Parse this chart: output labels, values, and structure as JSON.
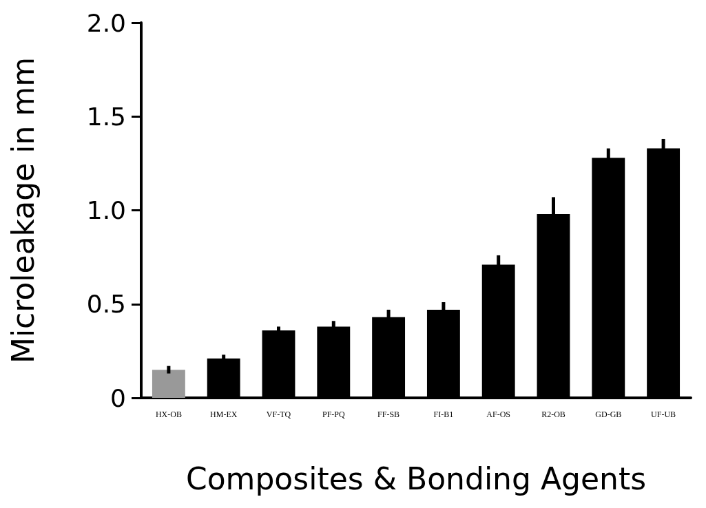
{
  "chart_data": {
    "type": "bar",
    "xlabel": "Composites & Bonding Agents",
    "ylabel": "Microleakage in mm",
    "categories": [
      "HX-OB",
      "HM-EX",
      "VF-TQ",
      "PF-PQ",
      "FF-SB",
      "FI-B1",
      "AF-OS",
      "R2-OB",
      "GD-GB",
      "UF-UB"
    ],
    "values": [
      0.15,
      0.21,
      0.36,
      0.38,
      0.43,
      0.47,
      0.71,
      0.98,
      1.28,
      1.33
    ],
    "errors": [
      0.02,
      0.02,
      0.02,
      0.03,
      0.04,
      0.04,
      0.05,
      0.09,
      0.05,
      0.05
    ],
    "colors": [
      "#999999",
      "#000000",
      "#000000",
      "#000000",
      "#000000",
      "#000000",
      "#000000",
      "#000000",
      "#000000",
      "#000000"
    ],
    "ylim": [
      0,
      2.0
    ],
    "yticks": [
      0,
      {
        "value": 0.5,
        "label": "0.5"
      },
      {
        "value": 1,
        "label": "1.0"
      },
      {
        "value": 1.5,
        "label": "1.5"
      },
      {
        "value": 2,
        "label": "2.0"
      }
    ],
    "grid": false
  }
}
